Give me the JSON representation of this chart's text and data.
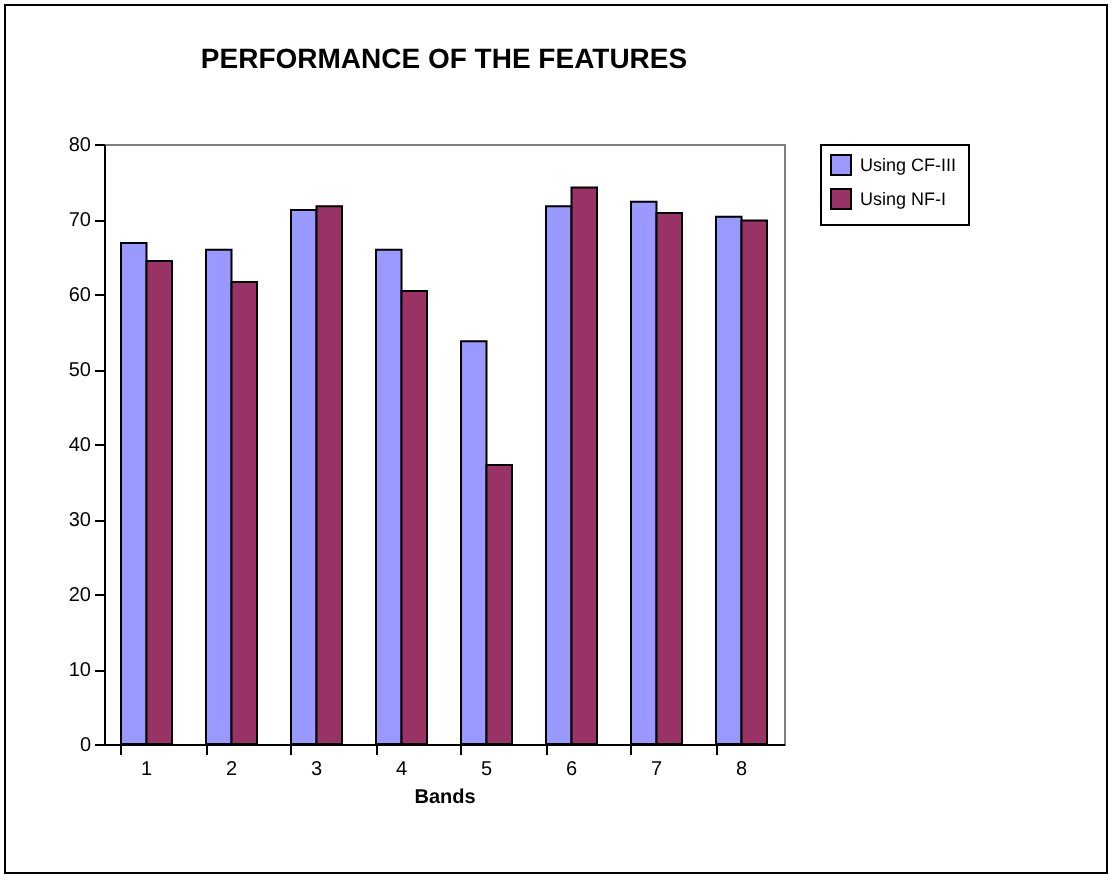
{
  "chart_data": {
    "type": "bar",
    "title": "PERFORMANCE OF THE FEATURES",
    "xlabel": "Bands",
    "categories": [
      "1",
      "2",
      "3",
      "4",
      "5",
      "6",
      "7",
      "8"
    ],
    "series": [
      {
        "name": "Using CF-III",
        "color": "#9999ff",
        "values": [
          66.8,
          65.9,
          71.2,
          65.9,
          53.7,
          71.7,
          72.3,
          70.3
        ]
      },
      {
        "name": "Using NF-I",
        "color": "#993366",
        "values": [
          64.4,
          61.6,
          71.7,
          60.4,
          37.2,
          74.2,
          70.8,
          69.8
        ]
      }
    ],
    "ylim": [
      0,
      80
    ],
    "yticks": [
      0,
      10,
      20,
      30,
      40,
      50,
      60,
      70,
      80
    ],
    "grid": false,
    "legend": "right"
  }
}
